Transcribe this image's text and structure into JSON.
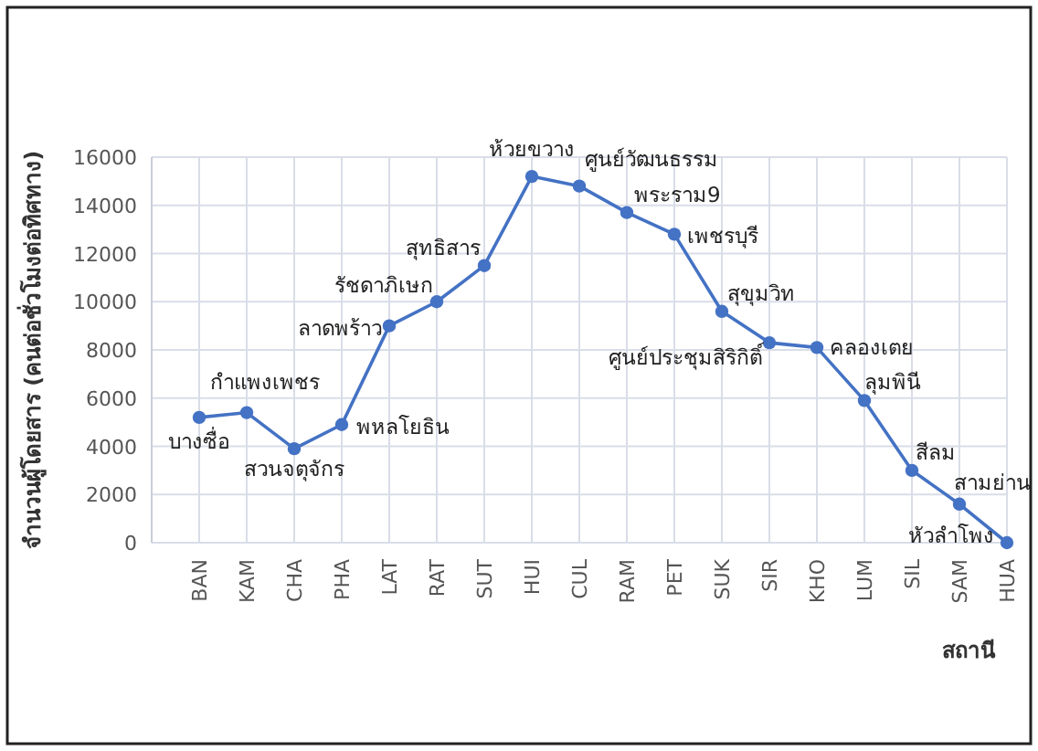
{
  "chart_data": {
    "type": "line",
    "ylabel": "จำนวนผู้โดยสาร (คนต่อชั่วโมงต่อทิศทาง)",
    "xlabel": "สถานี",
    "categories": [
      "BAN",
      "KAM",
      "CHA",
      "PHA",
      "LAT",
      "RAT",
      "SUT",
      "HUI",
      "CUL",
      "RAM",
      "PET",
      "SUK",
      "SIR",
      "KHO",
      "LUM",
      "SIL",
      "SAM",
      "HUA"
    ],
    "series": [
      {
        "color": "#4472c4",
        "values": [
          5200,
          5400,
          3900,
          4900,
          9000,
          10000,
          11500,
          15200,
          14800,
          13700,
          12800,
          9600,
          8300,
          8100,
          5900,
          3000,
          1600,
          0
        ]
      }
    ],
    "ylim": [
      0,
      16000
    ],
    "yticks": [
      0,
      2000,
      4000,
      6000,
      8000,
      10000,
      12000,
      14000,
      16000
    ],
    "grid": true,
    "marker": "circle",
    "line_style": "solid",
    "annotations": [
      {
        "text": "บางซื่อ",
        "x": "BAN",
        "y": 5200
      },
      {
        "text": "กำแพงเพชร",
        "x": "KAM",
        "y": 5400
      },
      {
        "text": "สวนจตุจักร",
        "x": "CHA",
        "y": 3900
      },
      {
        "text": "พหลโยธิน",
        "x": "PHA",
        "y": 4900
      },
      {
        "text": "ลาดพร้าว",
        "x": "LAT",
        "y": 9000
      },
      {
        "text": "รัชดาภิเษก",
        "x": "RAT",
        "y": 10000
      },
      {
        "text": "สุทธิสาร",
        "x": "SUT",
        "y": 11500
      },
      {
        "text": "ห้วยขวาง",
        "x": "HUI",
        "y": 15200
      },
      {
        "text": "ศูนย์วัฒนธรรม",
        "x": "CUL",
        "y": 14800
      },
      {
        "text": "พระราม9",
        "x": "RAM",
        "y": 13700
      },
      {
        "text": "เพชรบุรี",
        "x": "PET",
        "y": 12800
      },
      {
        "text": "สุขุมวิท",
        "x": "SUK",
        "y": 9600
      },
      {
        "text": "ศูนย์ประชุมสิริกิติ์",
        "x": "SIR",
        "y": 8300
      },
      {
        "text": "คลองเตย",
        "x": "KHO",
        "y": 8100
      },
      {
        "text": "ลุมพินี",
        "x": "LUM",
        "y": 5900
      },
      {
        "text": "สีลม",
        "x": "SIL",
        "y": 3000
      },
      {
        "text": "สามย่าน",
        "x": "SAM",
        "y": 1600
      },
      {
        "text": "หัวลำโพง",
        "x": "HUA",
        "y": 0
      }
    ]
  }
}
